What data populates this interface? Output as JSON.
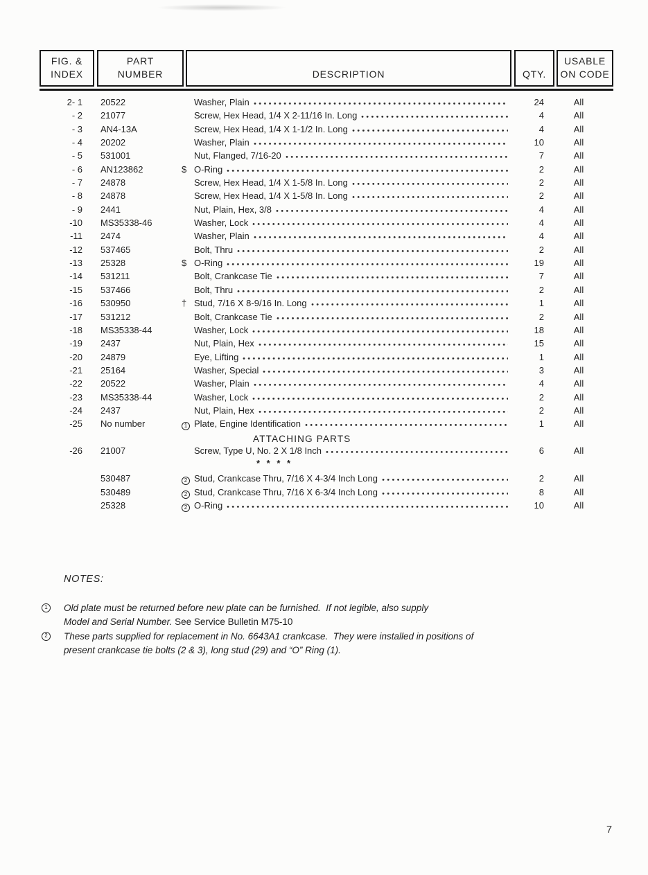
{
  "header": {
    "col_fig_line1": "FIG. &",
    "col_fig_line2": "INDEX",
    "col_part_line1": "PART",
    "col_part_line2": "NUMBER",
    "col_desc": "DESCRIPTION",
    "col_qty": "QTY.",
    "col_usable_line1": "USABLE",
    "col_usable_line2": "ON CODE"
  },
  "table": {
    "rows": [
      {
        "fig": "2- 1",
        "part": "20522",
        "marker": "",
        "circled": false,
        "desc": "Washer, Plain",
        "qty": "24",
        "code": "All"
      },
      {
        "fig": "- 2",
        "part": "21077",
        "marker": "",
        "circled": false,
        "desc": "Screw, Hex Head, 1/4 X 2-11/16 In. Long",
        "qty": "4",
        "code": "All"
      },
      {
        "fig": "- 3",
        "part": "AN4-13A",
        "marker": "",
        "circled": false,
        "desc": "Screw, Hex Head, 1/4 X 1-1/2 In. Long",
        "qty": "4",
        "code": "All"
      },
      {
        "fig": "- 4",
        "part": "20202",
        "marker": "",
        "circled": false,
        "desc": "Washer, Plain",
        "qty": "10",
        "code": "All"
      },
      {
        "fig": "- 5",
        "part": "531001",
        "marker": "",
        "circled": false,
        "desc": "Nut, Flanged, 7/16-20",
        "qty": "7",
        "code": "All"
      },
      {
        "fig": "- 6",
        "part": "AN123862",
        "marker": "$",
        "circled": false,
        "desc": "O-Ring",
        "qty": "2",
        "code": "All"
      },
      {
        "fig": "- 7",
        "part": "24878",
        "marker": "",
        "circled": false,
        "desc": "Screw, Hex Head, 1/4 X 1-5/8 In. Long",
        "qty": "2",
        "code": "All"
      },
      {
        "fig": "- 8",
        "part": "24878",
        "marker": "",
        "circled": false,
        "desc": "Screw, Hex Head, 1/4 X 1-5/8 In. Long",
        "qty": "2",
        "code": "All"
      },
      {
        "fig": "- 9",
        "part": "2441",
        "marker": "",
        "circled": false,
        "desc": "Nut, Plain, Hex, 3/8",
        "qty": "4",
        "code": "All"
      },
      {
        "fig": "-10",
        "part": "MS35338-46",
        "marker": "",
        "circled": false,
        "desc": "Washer, Lock",
        "qty": "4",
        "code": "All"
      },
      {
        "fig": "-11",
        "part": "2474",
        "marker": "",
        "circled": false,
        "desc": "Washer, Plain",
        "qty": "4",
        "code": "All"
      },
      {
        "fig": "-12",
        "part": "537465",
        "marker": "",
        "circled": false,
        "desc": "Bolt, Thru",
        "qty": "2",
        "code": "All"
      },
      {
        "fig": "-13",
        "part": "25328",
        "marker": "$",
        "circled": false,
        "desc": "O-Ring",
        "qty": "19",
        "code": "All"
      },
      {
        "fig": "-14",
        "part": "531211",
        "marker": "",
        "circled": false,
        "desc": "Bolt, Crankcase Tie",
        "qty": "7",
        "code": "All"
      },
      {
        "fig": "-15",
        "part": "537466",
        "marker": "",
        "circled": false,
        "desc": "Bolt, Thru",
        "qty": "2",
        "code": "All"
      },
      {
        "fig": "-16",
        "part": "530950",
        "marker": "†",
        "circled": false,
        "desc": "Stud, 7/16 X 8-9/16 In. Long",
        "qty": "1",
        "code": "All"
      },
      {
        "fig": "-17",
        "part": "531212",
        "marker": "",
        "circled": false,
        "desc": "Bolt, Crankcase Tie",
        "qty": "2",
        "code": "All"
      },
      {
        "fig": "-18",
        "part": "MS35338-44",
        "marker": "",
        "circled": false,
        "desc": "Washer, Lock",
        "qty": "18",
        "code": "All"
      },
      {
        "fig": "-19",
        "part": "2437",
        "marker": "",
        "circled": false,
        "desc": "Nut, Plain, Hex",
        "qty": "15",
        "code": "All"
      },
      {
        "fig": "-20",
        "part": "24879",
        "marker": "",
        "circled": false,
        "desc": "Eye, Lifting",
        "qty": "1",
        "code": "All"
      },
      {
        "fig": "-21",
        "part": "25164",
        "marker": "",
        "circled": false,
        "desc": "Washer, Special",
        "qty": "3",
        "code": "All"
      },
      {
        "fig": "-22",
        "part": "20522",
        "marker": "",
        "circled": false,
        "desc": "Washer, Plain",
        "qty": "4",
        "code": "All"
      },
      {
        "fig": "-23",
        "part": "MS35338-44",
        "marker": "",
        "circled": false,
        "desc": "Washer, Lock",
        "qty": "2",
        "code": "All"
      },
      {
        "fig": "-24",
        "part": "2437",
        "marker": "",
        "circled": false,
        "desc": "Nut, Plain, Hex",
        "qty": "2",
        "code": "All"
      },
      {
        "fig": "-25",
        "part": "No number",
        "marker": "1",
        "circled": true,
        "desc": "Plate, Engine Identification",
        "qty": "1",
        "code": "All"
      },
      {
        "type": "section",
        "label": "ATTACHING PARTS"
      },
      {
        "fig": "-26",
        "part": "21007",
        "marker": "",
        "circled": false,
        "desc": "Screw, Type U, No. 2 X 1/8 Inch",
        "qty": "6",
        "code": "All"
      },
      {
        "type": "stars",
        "label": "* * * *"
      },
      {
        "type": "spacer"
      },
      {
        "fig": "",
        "part": "530487",
        "marker": "2",
        "circled": true,
        "desc": "Stud, Crankcase Thru, 7/16 X 4-3/4 Inch Long",
        "qty": "2",
        "code": "All"
      },
      {
        "fig": "",
        "part": "530489",
        "marker": "2",
        "circled": true,
        "desc": "Stud, Crankcase Thru, 7/16 X 6-3/4 Inch Long",
        "qty": "8",
        "code": "All"
      },
      {
        "fig": "",
        "part": "25328",
        "marker": "2",
        "circled": true,
        "desc": "O-Ring",
        "qty": "10",
        "code": "All"
      }
    ]
  },
  "notes": {
    "heading": "NOTES:",
    "items": [
      {
        "marker": "1",
        "line1": "Old plate must be returned before new plate can be furnished.  If not legible, also supply",
        "line2_italic": "Model and Serial Number. ",
        "line2_normal": "See Service Bulletin M75-10"
      },
      {
        "marker": "2",
        "line1": "These parts supplied for replacement in No. 6643A1 crankcase.  They were installed in positions of",
        "line2_italic": "present crankcase tie bolts (2 & 3), long stud (29) and “O” Ring (1).",
        "line2_normal": ""
      }
    ]
  },
  "page_number": "7"
}
